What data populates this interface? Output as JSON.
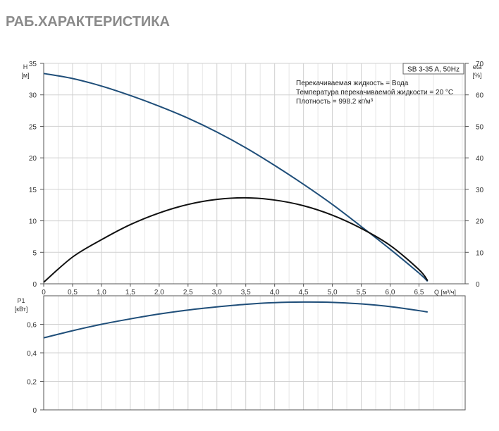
{
  "page": {
    "title": "РАБ.ХАРАКТЕРИСТИКА"
  },
  "chart_data": [
    {
      "type": "line",
      "id": "performance",
      "pump_label": "SB 3-35 A, 50Hz",
      "notes": [
        "Перекачиваемая жидкость = Вода",
        "Температура перекачиваемой жидкости = 20 °C",
        "Плотность = 998.2 кг/м³"
      ],
      "xlabel": "Q [м³/ч]",
      "xlim": [
        0,
        7.3
      ],
      "x_ticks": [
        0,
        0.5,
        1.0,
        1.5,
        2.0,
        2.5,
        3.0,
        3.5,
        4.0,
        4.5,
        5.0,
        5.5,
        6.0,
        6.5
      ],
      "x_tick_labels": [
        "0",
        "0,5",
        "1,0",
        "1,5",
        "2,0",
        "2,5",
        "3,0",
        "3,5",
        "4,0",
        "4,5",
        "5,0",
        "5,5",
        "6,0",
        "6,5"
      ],
      "y_left": {
        "label_line1": "H",
        "label_line2": "[м]",
        "ylim": [
          0,
          35
        ],
        "ticks": [
          0,
          5,
          10,
          15,
          20,
          25,
          30,
          35
        ]
      },
      "y_right": {
        "label_line1": "eta",
        "label_line2": "[%]",
        "ylim": [
          0,
          70
        ],
        "ticks": [
          0,
          10,
          20,
          30,
          40,
          50,
          60,
          70
        ]
      },
      "grid": true,
      "series": [
        {
          "axis": "left",
          "color": "#1f4e79",
          "x": [
            0,
            0.5,
            1.0,
            1.5,
            2.0,
            2.5,
            3.0,
            3.5,
            4.0,
            4.5,
            5.0,
            5.5,
            6.0,
            6.5,
            6.65
          ],
          "y": [
            33.4,
            32.6,
            31.4,
            29.9,
            28.2,
            26.3,
            24.1,
            21.6,
            18.8,
            15.8,
            12.6,
            9.1,
            5.5,
            1.7,
            0.4
          ]
        },
        {
          "axis": "right",
          "color": "#111111",
          "x": [
            0,
            0.5,
            1.0,
            1.5,
            2.0,
            2.5,
            3.0,
            3.5,
            4.0,
            4.5,
            5.0,
            5.5,
            6.0,
            6.5,
            6.65
          ],
          "y": [
            0.5,
            8.5,
            14.0,
            18.8,
            22.5,
            25.2,
            26.8,
            27.3,
            26.6,
            24.8,
            21.8,
            17.6,
            12.2,
            4.5,
            1.0
          ]
        }
      ]
    },
    {
      "type": "line",
      "id": "power",
      "xlim": [
        0,
        7.3
      ],
      "x_ticks": [
        0,
        0.5,
        1.0,
        1.5,
        2.0,
        2.5,
        3.0,
        3.5,
        4.0,
        4.5,
        5.0,
        5.5,
        6.0,
        6.5
      ],
      "y_left": {
        "label_line1": "P1",
        "label_line2": "[кВт]",
        "ylim": [
          0,
          0.8
        ],
        "ticks": [
          0,
          0.2,
          0.4,
          0.6
        ],
        "tick_labels": [
          "0",
          "0,2",
          "0,4",
          "0,6"
        ]
      },
      "grid": true,
      "series": [
        {
          "axis": "left",
          "color": "#1f4e79",
          "x": [
            0,
            0.5,
            1.0,
            1.5,
            2.0,
            2.5,
            3.0,
            3.5,
            4.0,
            4.5,
            5.0,
            5.5,
            6.0,
            6.5,
            6.65
          ],
          "y": [
            0.505,
            0.555,
            0.6,
            0.638,
            0.672,
            0.7,
            0.722,
            0.74,
            0.752,
            0.756,
            0.754,
            0.743,
            0.724,
            0.696,
            0.686
          ]
        }
      ]
    }
  ]
}
